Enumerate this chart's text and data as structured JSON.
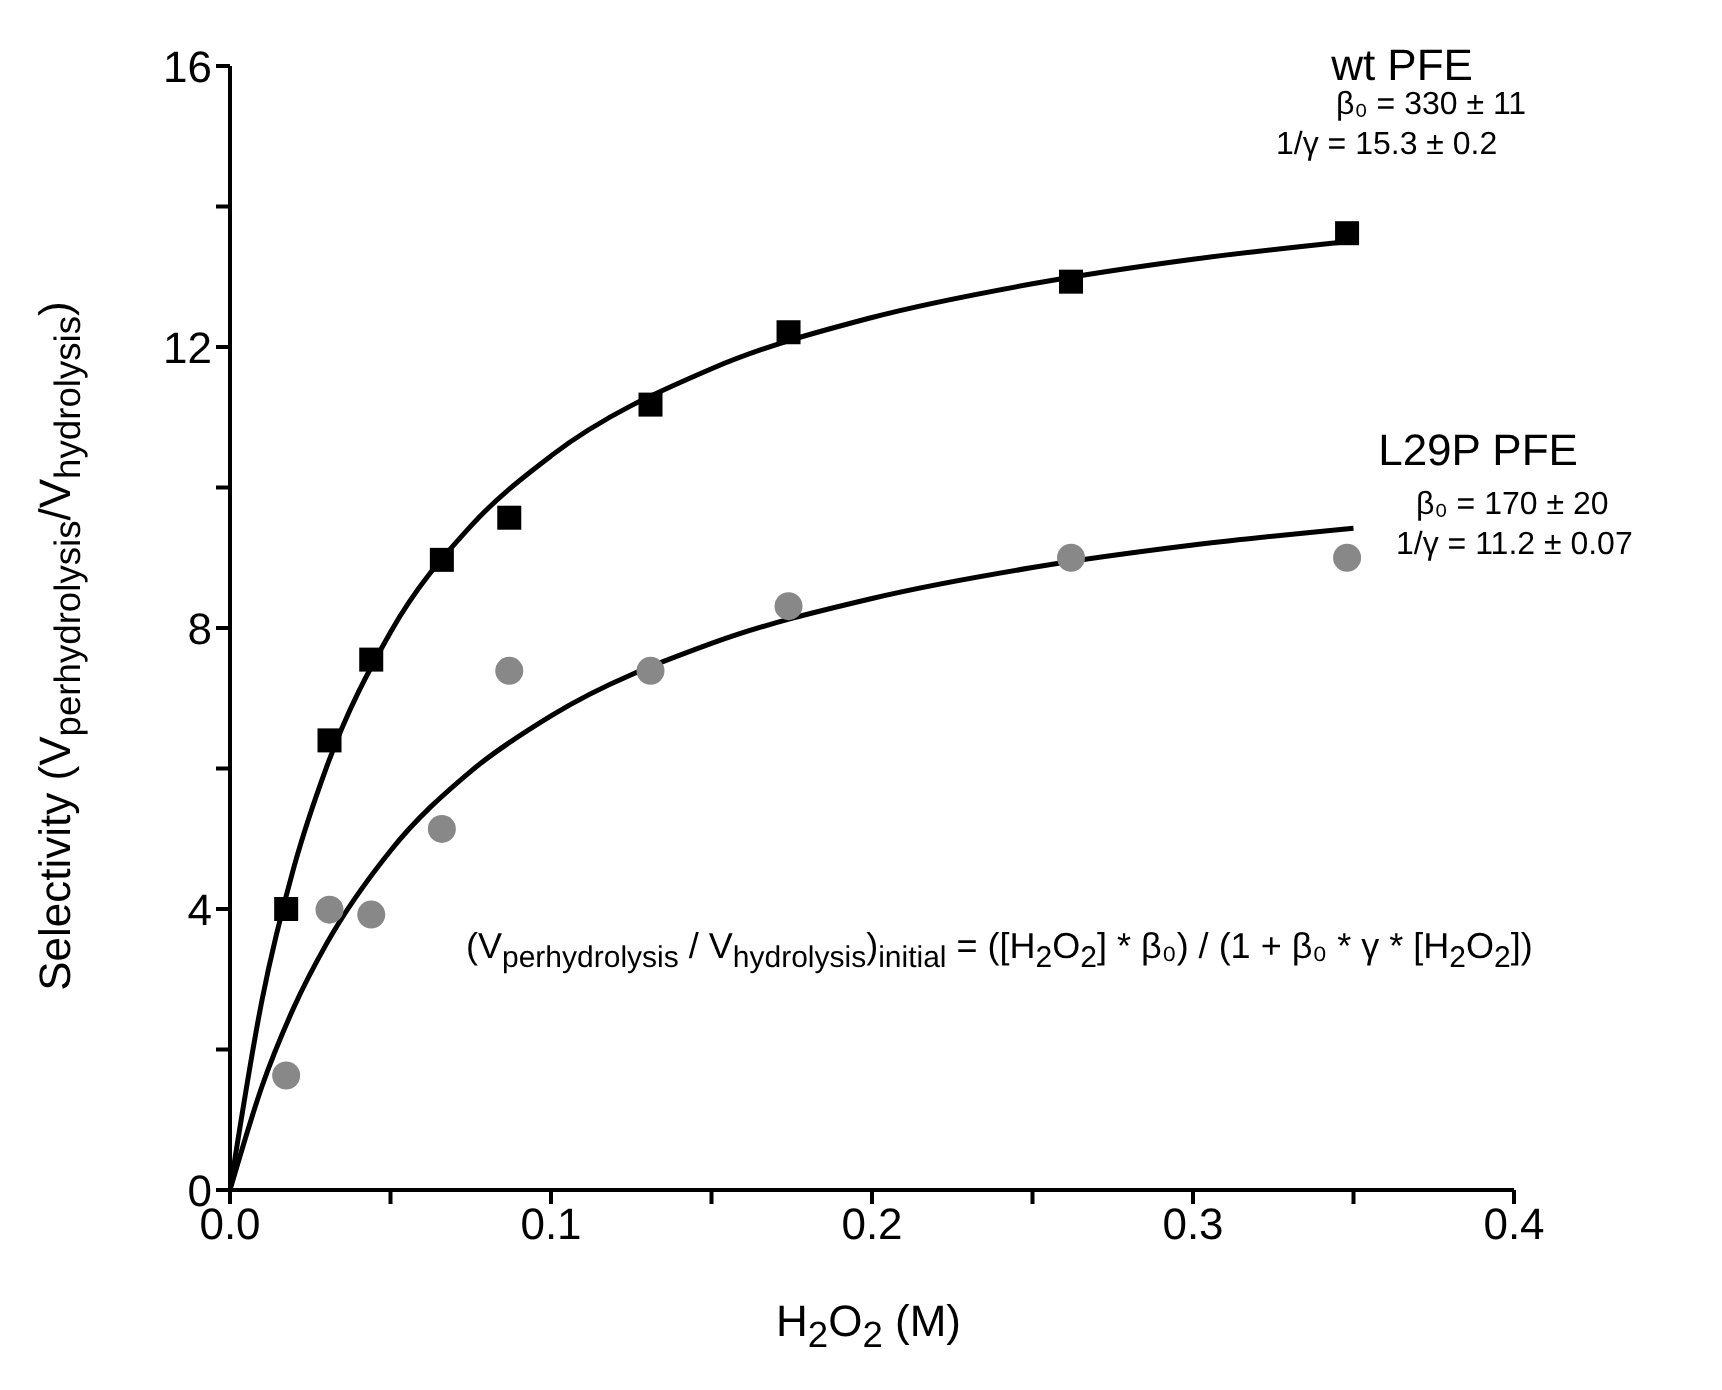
{
  "chart_data": {
    "type": "scatter",
    "xlabel": "H$_{2}$O$_{2}$ (M)",
    "ylabel": "Selectivity (V$_{perhydrolysis}$/V$_{hydrolysis}$)",
    "xlim": [
      0,
      0.4
    ],
    "xticks": [
      {
        "value": 0,
        "label": "0.0"
      },
      {
        "value": 0.05,
        "label": null
      },
      0.1,
      {
        "value": 0.15,
        "label": null
      },
      0.2,
      {
        "value": 0.25,
        "label": null
      },
      0.3,
      {
        "value": 0.35,
        "label": null
      },
      0.4
    ],
    "ylim": [
      0,
      16
    ],
    "yticks": [
      0,
      {
        "value": 2,
        "label": null
      },
      4,
      {
        "value": 6,
        "label": null
      },
      8,
      {
        "value": 10,
        "label": null
      },
      12,
      {
        "value": 14,
        "label": null
      },
      16
    ],
    "grid": false,
    "legend": false,
    "series": [
      {
        "name": "wt PFE",
        "type": "scatter",
        "marker": "square",
        "color": "#000000",
        "x": [
          0.0175,
          0.031,
          0.044,
          0.066,
          0.087,
          0.131,
          0.174,
          0.262,
          0.348
        ],
        "values": [
          4.0,
          6.4,
          7.55,
          8.97,
          9.57,
          11.18,
          12.21,
          12.93,
          13.62
        ]
      },
      {
        "name": "L29P PFE",
        "type": "scatter",
        "marker": "circle",
        "color": "#888888",
        "x": [
          0.0175,
          0.031,
          0.044,
          0.066,
          0.087,
          0.131,
          0.174,
          0.262,
          0.348
        ],
        "values": [
          1.63,
          3.99,
          3.92,
          5.14,
          7.39,
          7.39,
          8.31,
          9.0,
          9.0
        ]
      },
      {
        "type": "line",
        "marker": "none",
        "color": "#000000",
        "x": [
          0,
          0.01,
          0.02,
          0.03,
          0.05,
          0.075,
          0.1,
          0.15,
          0.2,
          0.25,
          0.3,
          0.35
        ],
        "values": [
          0,
          2.71,
          4.61,
          6.01,
          7.94,
          9.45,
          10.45,
          11.69,
          12.42,
          12.9,
          13.25,
          13.51
        ]
      },
      {
        "type": "line",
        "marker": "none",
        "color": "#000000",
        "x": [
          0,
          0.01,
          0.02,
          0.03,
          0.05,
          0.075,
          0.1,
          0.15,
          0.2,
          0.25,
          0.3,
          0.35
        ],
        "values": [
          0,
          1.48,
          2.61,
          3.5,
          4.83,
          5.96,
          6.75,
          7.78,
          8.42,
          8.86,
          9.18,
          9.42
        ]
      }
    ],
    "annotations": [
      "β₀ = 330 ± 11",
      "1/γ = 15.3 ± 0.2",
      "β₀ = 170 ± 20",
      "1/γ = 11.2 ± 0.07",
      "(V$_{perhydrolysis}$ / V$_{hydrolysis}$)$_{initial}$ = ([H$_{2}$O$_{2}$] * β₀) / (1 + β₀ * γ * [H$_{2}$O$_{2}$])"
    ]
  }
}
